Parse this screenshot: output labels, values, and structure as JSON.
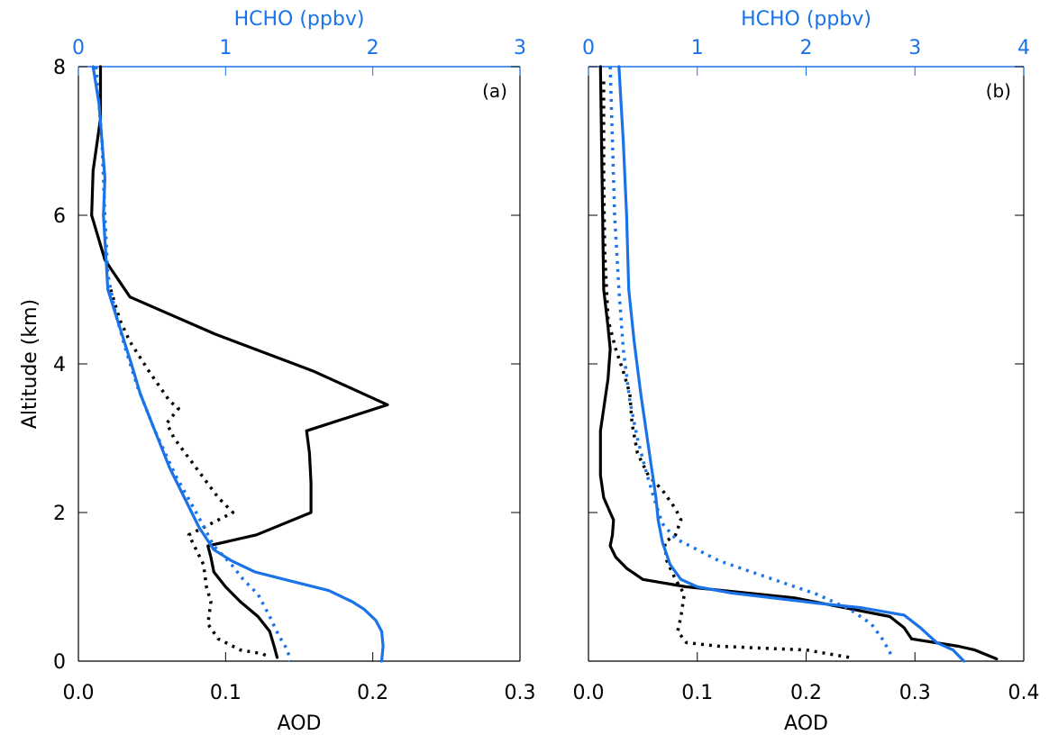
{
  "colors": {
    "black": "#000000",
    "blue": "#1a73e8"
  },
  "chart_data": [
    {
      "type": "line",
      "panel_label": "(a)",
      "xlabel": "AOD",
      "ylabel": "Altitude (km)",
      "x2label": "HCHO (ppbv)",
      "xlim": [
        0.0,
        0.3
      ],
      "x2lim": [
        0,
        3
      ],
      "ylim": [
        0,
        8
      ],
      "x_ticks": [
        "0.0",
        "0.1",
        "0.2",
        "0.3"
      ],
      "x2_ticks": [
        "0",
        "1",
        "2",
        "3"
      ],
      "y_ticks": [
        "0",
        "2",
        "4",
        "6",
        "8"
      ],
      "series": [
        {
          "axis": "bottom",
          "color": "#000000",
          "style": "solid",
          "points": [
            [
              0.015,
              8.0
            ],
            [
              0.015,
              7.3
            ],
            [
              0.01,
              6.6
            ],
            [
              0.009,
              6.0
            ],
            [
              0.018,
              5.4
            ],
            [
              0.035,
              4.9
            ],
            [
              0.093,
              4.4
            ],
            [
              0.16,
              3.9
            ],
            [
              0.21,
              3.45
            ],
            [
              0.155,
              3.1
            ],
            [
              0.157,
              2.8
            ],
            [
              0.158,
              2.4
            ],
            [
              0.158,
              2.0
            ],
            [
              0.121,
              1.7
            ],
            [
              0.088,
              1.55
            ],
            [
              0.09,
              1.4
            ],
            [
              0.092,
              1.2
            ],
            [
              0.1,
              1.0
            ],
            [
              0.11,
              0.8
            ],
            [
              0.122,
              0.6
            ],
            [
              0.13,
              0.4
            ],
            [
              0.133,
              0.2
            ],
            [
              0.135,
              0.05
            ]
          ]
        },
        {
          "axis": "bottom",
          "color": "#000000",
          "style": "dotted",
          "points": [
            [
              0.022,
              5.0
            ],
            [
              0.028,
              4.6
            ],
            [
              0.035,
              4.3
            ],
            [
              0.048,
              3.9
            ],
            [
              0.062,
              3.5
            ],
            [
              0.068,
              3.4
            ],
            [
              0.06,
              3.2
            ],
            [
              0.065,
              3.0
            ],
            [
              0.08,
              2.6
            ],
            [
              0.095,
              2.2
            ],
            [
              0.105,
              2.0
            ],
            [
              0.09,
              1.85
            ],
            [
              0.075,
              1.7
            ],
            [
              0.08,
              1.5
            ],
            [
              0.085,
              1.3
            ],
            [
              0.087,
              1.0
            ],
            [
              0.09,
              0.8
            ],
            [
              0.088,
              0.5
            ],
            [
              0.095,
              0.3
            ],
            [
              0.11,
              0.15
            ],
            [
              0.125,
              0.1
            ],
            [
              0.13,
              0.05
            ]
          ]
        },
        {
          "axis": "top",
          "color": "#1a73e8",
          "style": "solid",
          "points": [
            [
              0.1,
              8.0
            ],
            [
              0.14,
              7.5
            ],
            [
              0.18,
              6.5
            ],
            [
              0.17,
              6.0
            ],
            [
              0.2,
              5.0
            ],
            [
              0.28,
              4.5
            ],
            [
              0.36,
              4.0
            ],
            [
              0.42,
              3.6
            ],
            [
              0.52,
              3.1
            ],
            [
              0.62,
              2.6
            ],
            [
              0.72,
              2.2
            ],
            [
              0.82,
              1.8
            ],
            [
              0.92,
              1.5
            ],
            [
              1.04,
              1.35
            ],
            [
              1.2,
              1.2
            ],
            [
              1.4,
              1.1
            ],
            [
              1.7,
              0.95
            ],
            [
              1.86,
              0.8
            ],
            [
              1.94,
              0.7
            ],
            [
              2.02,
              0.55
            ],
            [
              2.06,
              0.4
            ],
            [
              2.07,
              0.2
            ],
            [
              2.06,
              0.0
            ]
          ]
        },
        {
          "axis": "top",
          "color": "#1a73e8",
          "style": "dotted",
          "points": [
            [
              0.12,
              8.0
            ],
            [
              0.16,
              7.0
            ],
            [
              0.18,
              6.0
            ],
            [
              0.2,
              5.2
            ],
            [
              0.25,
              4.7
            ],
            [
              0.32,
              4.2
            ],
            [
              0.4,
              3.7
            ],
            [
              0.52,
              3.1
            ],
            [
              0.66,
              2.5
            ],
            [
              0.8,
              2.0
            ],
            [
              0.92,
              1.55
            ],
            [
              1.04,
              1.3
            ],
            [
              1.12,
              1.1
            ],
            [
              1.22,
              0.9
            ],
            [
              1.3,
              0.6
            ],
            [
              1.36,
              0.35
            ],
            [
              1.42,
              0.15
            ],
            [
              1.44,
              0.0
            ]
          ]
        }
      ]
    },
    {
      "type": "line",
      "panel_label": "(b)",
      "xlabel": "AOD",
      "ylabel": "",
      "x2label": "HCHO (ppbv)",
      "xlim": [
        0.0,
        0.4
      ],
      "x2lim": [
        0,
        4
      ],
      "ylim": [
        0,
        8
      ],
      "x_ticks": [
        "0.0",
        "0.1",
        "0.2",
        "0.3",
        "0.4"
      ],
      "x2_ticks": [
        "0",
        "1",
        "2",
        "3",
        "4"
      ],
      "y_ticks": [
        "0",
        "2",
        "4",
        "6",
        "8"
      ],
      "series": [
        {
          "axis": "bottom",
          "color": "#000000",
          "style": "solid",
          "points": [
            [
              0.011,
              8.0
            ],
            [
              0.012,
              7.0
            ],
            [
              0.013,
              6.0
            ],
            [
              0.014,
              5.0
            ],
            [
              0.018,
              4.5
            ],
            [
              0.02,
              4.2
            ],
            [
              0.018,
              3.8
            ],
            [
              0.015,
              3.5
            ],
            [
              0.011,
              3.1
            ],
            [
              0.011,
              2.5
            ],
            [
              0.014,
              2.2
            ],
            [
              0.02,
              2.0
            ],
            [
              0.023,
              1.9
            ],
            [
              0.022,
              1.7
            ],
            [
              0.02,
              1.55
            ],
            [
              0.025,
              1.4
            ],
            [
              0.035,
              1.25
            ],
            [
              0.05,
              1.1
            ],
            [
              0.09,
              1.0
            ],
            [
              0.19,
              0.85
            ],
            [
              0.277,
              0.6
            ],
            [
              0.29,
              0.45
            ],
            [
              0.297,
              0.3
            ],
            [
              0.34,
              0.2
            ],
            [
              0.355,
              0.15
            ],
            [
              0.375,
              0.03
            ]
          ]
        },
        {
          "axis": "bottom",
          "color": "#000000",
          "style": "dotted",
          "points": [
            [
              0.014,
              7.8
            ],
            [
              0.014,
              6.5
            ],
            [
              0.015,
              5.5
            ],
            [
              0.018,
              4.6
            ],
            [
              0.025,
              4.2
            ],
            [
              0.032,
              3.9
            ],
            [
              0.038,
              3.6
            ],
            [
              0.04,
              3.2
            ],
            [
              0.045,
              2.8
            ],
            [
              0.055,
              2.5
            ],
            [
              0.068,
              2.3
            ],
            [
              0.08,
              2.05
            ],
            [
              0.085,
              1.9
            ],
            [
              0.08,
              1.7
            ],
            [
              0.07,
              1.6
            ],
            [
              0.072,
              1.35
            ],
            [
              0.08,
              1.1
            ],
            [
              0.088,
              0.9
            ],
            [
              0.085,
              0.6
            ],
            [
              0.082,
              0.4
            ],
            [
              0.09,
              0.25
            ],
            [
              0.12,
              0.2
            ],
            [
              0.2,
              0.15
            ],
            [
              0.24,
              0.05
            ]
          ]
        },
        {
          "axis": "top",
          "color": "#1a73e8",
          "style": "solid",
          "points": [
            [
              0.28,
              8.0
            ],
            [
              0.3,
              7.5
            ],
            [
              0.32,
              7.0
            ],
            [
              0.35,
              6.0
            ],
            [
              0.37,
              5.0
            ],
            [
              0.42,
              4.3
            ],
            [
              0.48,
              3.6
            ],
            [
              0.54,
              3.0
            ],
            [
              0.58,
              2.6
            ],
            [
              0.62,
              2.2
            ],
            [
              0.64,
              1.9
            ],
            [
              0.68,
              1.6
            ],
            [
              0.75,
              1.3
            ],
            [
              0.85,
              1.1
            ],
            [
              1.0,
              1.0
            ],
            [
              1.3,
              0.92
            ],
            [
              1.7,
              0.85
            ],
            [
              2.1,
              0.78
            ],
            [
              2.5,
              0.72
            ],
            [
              2.9,
              0.62
            ],
            [
              3.05,
              0.45
            ],
            [
              3.2,
              0.25
            ],
            [
              3.35,
              0.15
            ],
            [
              3.45,
              0.0
            ]
          ]
        },
        {
          "axis": "top",
          "color": "#1a73e8",
          "style": "dotted",
          "points": [
            [
              0.2,
              8.0
            ],
            [
              0.22,
              7.0
            ],
            [
              0.24,
              6.0
            ],
            [
              0.28,
              5.0
            ],
            [
              0.32,
              4.2
            ],
            [
              0.38,
              3.5
            ],
            [
              0.45,
              3.0
            ],
            [
              0.52,
              2.6
            ],
            [
              0.6,
              2.2
            ],
            [
              0.68,
              1.85
            ],
            [
              0.8,
              1.65
            ],
            [
              1.0,
              1.5
            ],
            [
              1.2,
              1.35
            ],
            [
              1.5,
              1.2
            ],
            [
              1.8,
              1.05
            ],
            [
              2.1,
              0.9
            ],
            [
              2.4,
              0.7
            ],
            [
              2.6,
              0.5
            ],
            [
              2.7,
              0.3
            ],
            [
              2.77,
              0.12
            ],
            [
              2.78,
              0.05
            ]
          ]
        }
      ]
    }
  ]
}
